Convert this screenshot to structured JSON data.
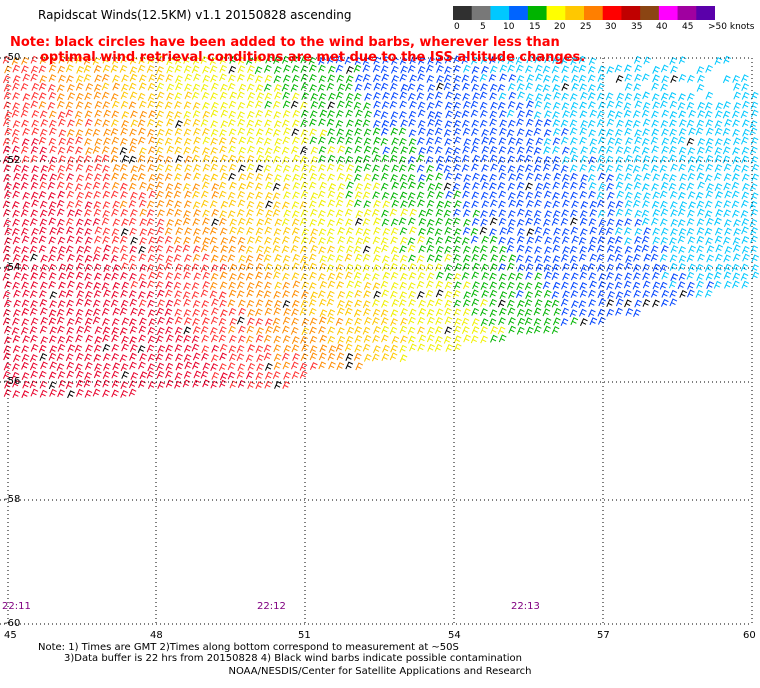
{
  "header": {
    "title": "Rapidscat Winds(12.5KM) v1.1 20150828 ascending"
  },
  "note": {
    "line1": "Note: black circles have been added to the wind barbs, wherever less than",
    "line2": "optimal wind retrieval conditions are met due to the ISS altitude changes."
  },
  "legend": {
    "labels": [
      "0",
      "5",
      "10",
      "15",
      "20",
      "25",
      "30",
      "35",
      "40",
      "45",
      ">50 knots"
    ],
    "colors": [
      "#303030",
      "#787878",
      "#00c8ff",
      "#0064ff",
      "#00b400",
      "#ffff00",
      "#ffc800",
      "#ff7f00",
      "#ff0000",
      "#c00000",
      "#8b4513",
      "#ff00ff",
      "#a000a0",
      "#5a00aa"
    ]
  },
  "axes": {
    "latitudes": [
      "-50",
      "-52",
      "-54",
      "-56",
      "-58",
      "-60"
    ],
    "longitudes": [
      "45",
      "48",
      "51",
      "54",
      "57",
      "60"
    ]
  },
  "times": [
    "22:11",
    "22:12",
    "22:13"
  ],
  "footnote": {
    "line1": "Note: 1) Times are GMT 2)Times along bottom correspond to measurement at ~50S",
    "line2": "3)Data buffer is 22 hrs from 20150828 4) Black wind barbs indicate possible contamination"
  },
  "credit": "NOAA/NESDIS/Center for Satellite Applications and Research"
}
